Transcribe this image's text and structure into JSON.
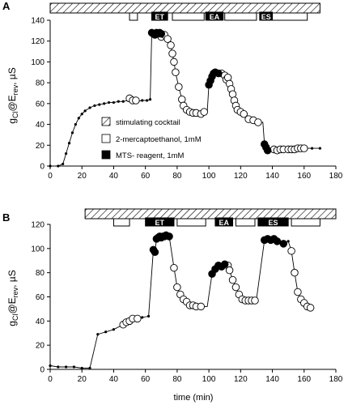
{
  "panels": [
    {
      "label": "A",
      "ylabel_main": "g",
      "ylabel_sub1": "Cl",
      "ylabel_mid": "@E",
      "ylabel_sub2": "rev",
      "ylabel_unit": ", µS",
      "xlabel": "",
      "protocol_labels": [
        "ET",
        "EA",
        "ES"
      ],
      "legend": [
        {
          "marker": "hatched",
          "text": "stimulating cocktail"
        },
        {
          "marker": "open",
          "text": "2-mercaptoethanol, 1mM"
        },
        {
          "marker": "filled",
          "text": "MTS- reagent, 1mM"
        }
      ]
    },
    {
      "label": "B",
      "ylabel_main": "g",
      "ylabel_sub1": "Cl",
      "ylabel_mid": "@E",
      "ylabel_sub2": "rev",
      "ylabel_unit": ", µS",
      "xlabel": "time (min)",
      "protocol_labels": [
        "ET",
        "EA",
        "ES"
      ]
    }
  ],
  "chart_data": [
    {
      "type": "scatter",
      "panel": "A",
      "xlim": [
        0,
        180
      ],
      "ylim": [
        0,
        140
      ],
      "xticks": [
        0,
        20,
        40,
        60,
        80,
        100,
        120,
        140,
        160,
        180
      ],
      "yticks": [
        0,
        20,
        40,
        60,
        80,
        100,
        120,
        140
      ],
      "grid": false,
      "legend_position": "lower-center",
      "protocol_bar": {
        "cocktail": [
          0,
          170
        ],
        "mercaptoethanol": [
          [
            50,
            55
          ],
          [
            77,
            97
          ],
          [
            110,
            130
          ],
          [
            140,
            162
          ]
        ],
        "mts": [
          [
            64,
            74
          ],
          [
            98,
            109
          ],
          [
            132,
            140
          ]
        ]
      },
      "small_points": [
        [
          0,
          0
        ],
        [
          5,
          0
        ],
        [
          8,
          2
        ],
        [
          10,
          12
        ],
        [
          12,
          22
        ],
        [
          14,
          32
        ],
        [
          16,
          40
        ],
        [
          18,
          46
        ],
        [
          20,
          50
        ],
        [
          22,
          53
        ],
        [
          25,
          56
        ],
        [
          28,
          58
        ],
        [
          31,
          59
        ],
        [
          34,
          60
        ],
        [
          37,
          61
        ],
        [
          40,
          61
        ],
        [
          43,
          62
        ],
        [
          46,
          62
        ],
        [
          49,
          63
        ],
        [
          55,
          62
        ],
        [
          58,
          63
        ],
        [
          61,
          63
        ],
        [
          63,
          64
        ],
        [
          150,
          16
        ],
        [
          153,
          16
        ],
        [
          157,
          17
        ],
        [
          161,
          17
        ],
        [
          165,
          17
        ],
        [
          170,
          17
        ]
      ],
      "open_points": [
        [
          50,
          65
        ],
        [
          52,
          63
        ],
        [
          54,
          63
        ],
        [
          70,
          124
        ],
        [
          72,
          126
        ],
        [
          74,
          122
        ],
        [
          76,
          116
        ],
        [
          77,
          108
        ],
        [
          78,
          100
        ],
        [
          79,
          90
        ],
        [
          81,
          76
        ],
        [
          83,
          64
        ],
        [
          84,
          58
        ],
        [
          86,
          54
        ],
        [
          88,
          52
        ],
        [
          90,
          51
        ],
        [
          92,
          51
        ],
        [
          95,
          50
        ],
        [
          97,
          52
        ],
        [
          108,
          89
        ],
        [
          110,
          87
        ],
        [
          111,
          83
        ],
        [
          112,
          85
        ],
        [
          113,
          79
        ],
        [
          114,
          74
        ],
        [
          115,
          69
        ],
        [
          116,
          63
        ],
        [
          117,
          58
        ],
        [
          118,
          54
        ],
        [
          120,
          52
        ],
        [
          122,
          50
        ],
        [
          125,
          45
        ],
        [
          128,
          44
        ],
        [
          131,
          42
        ],
        [
          141,
          16
        ],
        [
          143,
          15
        ],
        [
          145,
          16
        ],
        [
          147,
          16
        ],
        [
          150,
          16
        ],
        [
          152,
          16
        ],
        [
          154,
          16
        ],
        [
          156,
          17
        ],
        [
          158,
          17
        ],
        [
          160,
          17
        ]
      ],
      "filled_points": [
        [
          64,
          128
        ],
        [
          65,
          127
        ],
        [
          66,
          126
        ],
        [
          67,
          128
        ],
        [
          68,
          127
        ],
        [
          69,
          128
        ],
        [
          70,
          127
        ],
        [
          100,
          78
        ],
        [
          101,
          82
        ],
        [
          102,
          86
        ],
        [
          103,
          89
        ],
        [
          104,
          90
        ],
        [
          106,
          89
        ],
        [
          135,
          21
        ],
        [
          136,
          18
        ],
        [
          137,
          15
        ]
      ],
      "line": [
        [
          0,
          0
        ],
        [
          5,
          0
        ],
        [
          8,
          2
        ],
        [
          10,
          12
        ],
        [
          12,
          22
        ],
        [
          14,
          32
        ],
        [
          16,
          40
        ],
        [
          18,
          46
        ],
        [
          20,
          50
        ],
        [
          22,
          53
        ],
        [
          25,
          56
        ],
        [
          28,
          58
        ],
        [
          31,
          59
        ],
        [
          34,
          60
        ],
        [
          37,
          61
        ],
        [
          40,
          61
        ],
        [
          43,
          62
        ],
        [
          46,
          62
        ],
        [
          49,
          63
        ],
        [
          50,
          65
        ],
        [
          52,
          63
        ],
        [
          54,
          63
        ],
        [
          55,
          62
        ],
        [
          58,
          63
        ],
        [
          61,
          63
        ],
        [
          63,
          64
        ],
        [
          64,
          128
        ],
        [
          66,
          126
        ],
        [
          68,
          127
        ],
        [
          70,
          124
        ],
        [
          72,
          126
        ],
        [
          74,
          122
        ],
        [
          76,
          116
        ],
        [
          78,
          100
        ],
        [
          79,
          90
        ],
        [
          81,
          76
        ],
        [
          83,
          64
        ],
        [
          84,
          58
        ],
        [
          86,
          54
        ],
        [
          88,
          52
        ],
        [
          90,
          51
        ],
        [
          92,
          51
        ],
        [
          95,
          50
        ],
        [
          97,
          52
        ],
        [
          99,
          52
        ],
        [
          100,
          78
        ],
        [
          101,
          82
        ],
        [
          102,
          86
        ],
        [
          103,
          89
        ],
        [
          104,
          90
        ],
        [
          106,
          89
        ],
        [
          108,
          89
        ],
        [
          110,
          87
        ],
        [
          111,
          83
        ],
        [
          112,
          85
        ],
        [
          113,
          79
        ],
        [
          114,
          74
        ],
        [
          115,
          69
        ],
        [
          116,
          63
        ],
        [
          117,
          58
        ],
        [
          118,
          54
        ],
        [
          120,
          52
        ],
        [
          122,
          50
        ],
        [
          125,
          45
        ],
        [
          128,
          44
        ],
        [
          131,
          42
        ],
        [
          134,
          42
        ],
        [
          135,
          21
        ],
        [
          136,
          18
        ],
        [
          137,
          15
        ],
        [
          141,
          16
        ],
        [
          143,
          15
        ],
        [
          145,
          16
        ],
        [
          147,
          16
        ],
        [
          150,
          16
        ],
        [
          152,
          16
        ],
        [
          154,
          16
        ],
        [
          156,
          17
        ],
        [
          158,
          17
        ],
        [
          160,
          17
        ],
        [
          161,
          17
        ],
        [
          165,
          17
        ],
        [
          170,
          17
        ]
      ]
    },
    {
      "type": "scatter",
      "panel": "B",
      "xlim": [
        0,
        180
      ],
      "ylim": [
        0,
        120
      ],
      "xticks": [
        0,
        20,
        40,
        60,
        80,
        100,
        120,
        140,
        160,
        180
      ],
      "yticks": [
        0,
        20,
        40,
        60,
        80,
        100,
        120
      ],
      "grid": false,
      "protocol_bar": {
        "cocktail": [
          22,
          180
        ],
        "mercaptoethanol": [
          [
            40,
            50
          ],
          [
            80,
            98
          ],
          [
            117,
            129
          ],
          [
            152,
            170
          ]
        ],
        "mts": [
          [
            60,
            78
          ],
          [
            104,
            115
          ],
          [
            131,
            150
          ]
        ]
      },
      "small_points": [
        [
          0,
          3
        ],
        [
          5,
          2
        ],
        [
          10,
          2
        ],
        [
          15,
          2
        ],
        [
          20,
          1
        ],
        [
          25,
          1
        ],
        [
          30,
          29
        ],
        [
          35,
          31
        ],
        [
          40,
          33
        ],
        [
          58,
          43
        ],
        [
          62,
          44
        ],
        [
          130,
          58
        ],
        [
          150,
          106
        ]
      ],
      "open_points": [
        [
          46,
          37
        ],
        [
          48,
          39
        ],
        [
          50,
          40
        ],
        [
          52,
          42
        ],
        [
          55,
          42
        ],
        [
          78,
          84
        ],
        [
          80,
          68
        ],
        [
          82,
          62
        ],
        [
          84,
          58
        ],
        [
          86,
          56
        ],
        [
          88,
          53
        ],
        [
          90,
          53
        ],
        [
          92,
          52
        ],
        [
          95,
          52
        ],
        [
          112,
          86
        ],
        [
          113,
          82
        ],
        [
          115,
          74
        ],
        [
          117,
          68
        ],
        [
          119,
          62
        ],
        [
          121,
          58
        ],
        [
          123,
          57
        ],
        [
          125,
          57
        ],
        [
          127,
          57
        ],
        [
          129,
          57
        ],
        [
          152,
          98
        ],
        [
          154,
          80
        ],
        [
          156,
          64
        ],
        [
          158,
          58
        ],
        [
          160,
          55
        ],
        [
          162,
          52
        ],
        [
          164,
          51
        ]
      ],
      "filled_points": [
        [
          65,
          99
        ],
        [
          66,
          97
        ],
        [
          67,
          108
        ],
        [
          68,
          109
        ],
        [
          69,
          110
        ],
        [
          70,
          109
        ],
        [
          71,
          110
        ],
        [
          72,
          110
        ],
        [
          73,
          111
        ],
        [
          75,
          110
        ],
        [
          102,
          79
        ],
        [
          104,
          83
        ],
        [
          106,
          86
        ],
        [
          108,
          85
        ],
        [
          110,
          87
        ],
        [
          135,
          107
        ],
        [
          137,
          108
        ],
        [
          139,
          107
        ],
        [
          141,
          108
        ],
        [
          143,
          106
        ],
        [
          147,
          104
        ]
      ],
      "line": [
        [
          0,
          3
        ],
        [
          5,
          2
        ],
        [
          10,
          2
        ],
        [
          15,
          2
        ],
        [
          20,
          1
        ],
        [
          25,
          1
        ],
        [
          30,
          29
        ],
        [
          35,
          31
        ],
        [
          40,
          33
        ],
        [
          46,
          37
        ],
        [
          48,
          39
        ],
        [
          50,
          40
        ],
        [
          52,
          42
        ],
        [
          55,
          42
        ],
        [
          58,
          43
        ],
        [
          62,
          44
        ],
        [
          65,
          99
        ],
        [
          66,
          97
        ],
        [
          67,
          108
        ],
        [
          69,
          110
        ],
        [
          71,
          110
        ],
        [
          73,
          111
        ],
        [
          75,
          110
        ],
        [
          78,
          84
        ],
        [
          80,
          68
        ],
        [
          82,
          62
        ],
        [
          84,
          58
        ],
        [
          86,
          56
        ],
        [
          88,
          53
        ],
        [
          90,
          53
        ],
        [
          92,
          52
        ],
        [
          95,
          52
        ],
        [
          99,
          52
        ],
        [
          102,
          79
        ],
        [
          104,
          83
        ],
        [
          106,
          86
        ],
        [
          108,
          85
        ],
        [
          110,
          87
        ],
        [
          112,
          86
        ],
        [
          113,
          82
        ],
        [
          115,
          74
        ],
        [
          117,
          68
        ],
        [
          119,
          62
        ],
        [
          121,
          58
        ],
        [
          123,
          57
        ],
        [
          125,
          57
        ],
        [
          127,
          57
        ],
        [
          129,
          57
        ],
        [
          130,
          58
        ],
        [
          135,
          107
        ],
        [
          137,
          108
        ],
        [
          139,
          107
        ],
        [
          141,
          108
        ],
        [
          143,
          106
        ],
        [
          147,
          104
        ],
        [
          150,
          106
        ],
        [
          152,
          98
        ],
        [
          154,
          80
        ],
        [
          156,
          64
        ],
        [
          158,
          58
        ],
        [
          160,
          55
        ],
        [
          162,
          52
        ],
        [
          164,
          51
        ]
      ]
    }
  ]
}
